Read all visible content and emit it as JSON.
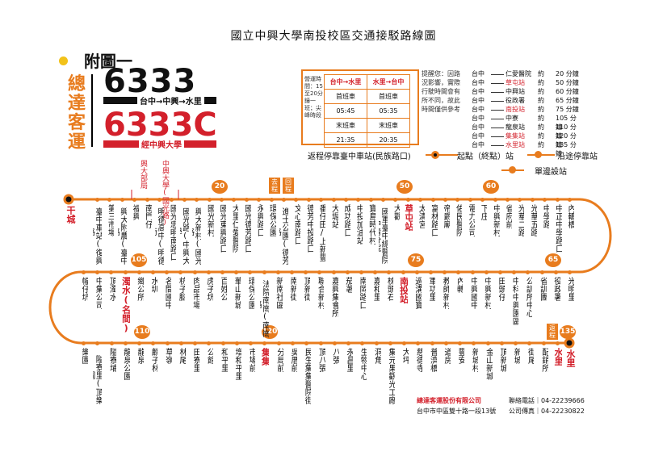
{
  "title": "國立中興大學南投校區交通接駁路線圖",
  "annex": "附圖一",
  "company_short": [
    "總",
    "達",
    "客",
    "運"
  ],
  "route_main": "6333",
  "route_main_desc": "台中→中興→水里",
  "route_c": "6333C",
  "route_c_desc": "經中興大學",
  "schedule": {
    "side_label": "營運時間：15至20分鐘一班；尖峰時段",
    "headers": [
      "台中→水里",
      "水里→台中"
    ],
    "rows": [
      [
        "首班車",
        "首班車"
      ],
      [
        "05:45",
        "05:35"
      ],
      [
        "末班車",
        "末班車"
      ],
      [
        "21:35",
        "20:35"
      ]
    ]
  },
  "reminder": "提醒您：因路況影響，實際行駛時間會有所不同，故此時間僅供參考",
  "travel_times": [
    {
      "from": "台中",
      "to": "仁愛醫院",
      "about": "約",
      "min": "20 分鐘",
      "hl": false
    },
    {
      "from": "台中",
      "to": "草屯站",
      "about": "約",
      "min": "50 分鐘",
      "hl": true
    },
    {
      "from": "台中",
      "to": "中興站",
      "about": "約",
      "min": "60 分鐘",
      "hl": false
    },
    {
      "from": "台中",
      "to": "役政署",
      "about": "約",
      "min": "65 分鐘",
      "hl": false
    },
    {
      "from": "台中",
      "to": "南投站",
      "about": "約",
      "min": "75 分鐘",
      "hl": true
    },
    {
      "from": "台中",
      "to": "中寮",
      "about": "約",
      "min": "105 分鐘",
      "hl": false
    },
    {
      "from": "台中",
      "to": "龍泉站",
      "about": "約",
      "min": "110 分鐘",
      "hl": false
    },
    {
      "from": "台中",
      "to": "集集站",
      "about": "約",
      "min": "120 分鐘",
      "hl": true
    },
    {
      "from": "台中",
      "to": "水里站",
      "about": "約",
      "min": "135 分鐘",
      "hl": true
    }
  ],
  "legend": {
    "return_stop": "返程停靠臺中車站(民族路口)",
    "origin": "起點（終點）站",
    "via": "沿途停靠站",
    "oneway": "單邊設站"
  },
  "end_labels": {
    "start": "干城",
    "end": "水里"
  },
  "stops_row1": [
    "臺中車站(復興路)",
    "第三市場",
    "興大附農(臺中路)",
    "福興",
    "南門仔",
    "明德高中(明德街)",
    "國光忠明南路口",
    "國光路(中興大學)",
    "興大新村(國光路)",
    "國光新村",
    "國光東興路口",
    "大里仁愛醫院",
    "國光德芳路口",
    "永興路口",
    "環保公園",
    "進士公園(德芳路)",
    "文心南路口",
    "德芳中投路口",
    "番仔田/上新豐",
    "大堀站",
    "成功路口",
    "中投加油站",
    "寶島時代村",
    "國軍臺中總醫院(中清分院)",
    "大觀",
    "草屯站",
    "太清宮",
    "富林路口",
    "帝爵廟",
    "佑民醫院",
    "電力公司",
    "下庄",
    "中興新村",
    "省府前",
    "光華二路",
    "光華五路",
    "中學路",
    "中正中學路口",
    "內轆橋"
  ],
  "stops_row1_hl": [
    "草屯站"
  ],
  "stops_row2": [
    "幅仔坑",
    "中集公司",
    "頂濁水",
    "濁水(名間)",
    "鄉公所",
    "水圳",
    "名間國中",
    "枋子腳",
    "肉品市場",
    "虎子坑",
    "百姓公",
    "華山新城",
    "環保公園",
    "法院南崗(南崗路)",
    "新南社區",
    "南新街",
    "頂新街",
    "聯合新村",
    "嘉興集會所",
    "茄荖",
    "南岡路口",
    "嘉和里",
    "枕頭石",
    "南投站",
    "過溝國寶",
    "軍功里",
    "教師新村",
    "內轉",
    "中興國中",
    "中興新村",
    "田頭仔",
    "中科中興園區",
    "公訓所中心",
    "省訓團",
    "役政署",
    "光明里"
  ],
  "stops_row2_hl": [
    "濁水(名間)",
    "南投站"
  ],
  "stops_row3": [
    "樂園",
    "隘寮里(頂樂園)",
    "隘寮埔",
    "龍泉公園",
    "龍泉",
    "麒子林",
    "草嶺",
    "林尾",
    "田寮里",
    "公館",
    "和平里",
    "增和平里",
    "市場前",
    "集集",
    "分局前",
    "吳厝前",
    "民生集集醫院街",
    "頂八張",
    "八張",
    "永昌里",
    "生物中心",
    "洞角",
    "集元果觀光工廠",
    "大坪",
    "慈德寺",
    "普濟橋",
    "道房",
    "豐安",
    "新城村",
    "金山新城",
    "頂新城",
    "新城",
    "街尾",
    "配銷所",
    "水里"
  ],
  "stops_row3_hl": [
    "集集",
    "水里"
  ],
  "badges": {
    "b20": "20",
    "b50": "50",
    "b60": "60",
    "b65": "65",
    "b75": "75",
    "b105": "105",
    "b110": "110",
    "b120": "120",
    "b135": "135"
  },
  "tags": {
    "go": "去程",
    "back": "回程",
    "back2": "返程"
  },
  "station_note": [
    "興大部局",
    "中興大學(國光路)"
  ],
  "footer": {
    "company": "總達客運股份有限公司",
    "address": "台中市中區雙十路一段13號",
    "tel": "聯絡電話｜04-22239666",
    "fax": "公司傳真｜04-22230822"
  },
  "colors": {
    "accent": "#e87c1e",
    "red": "#d3202b",
    "yellow": "#f2c21a"
  }
}
